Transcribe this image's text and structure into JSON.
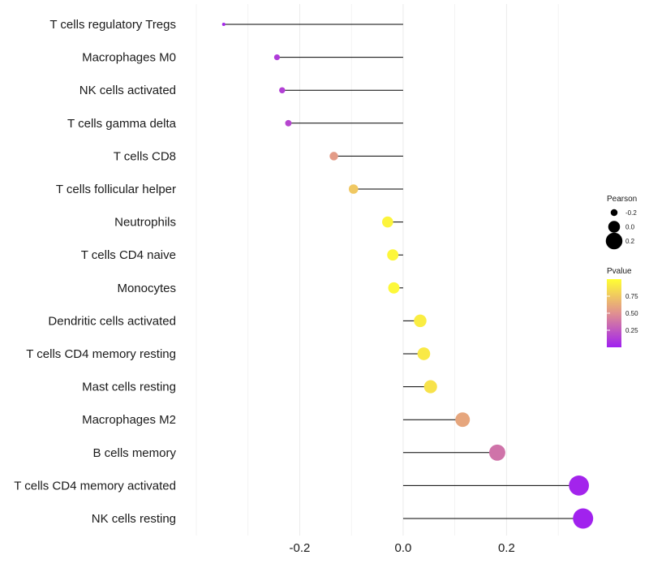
{
  "chart_data": {
    "type": "lollipop",
    "title": "",
    "xlabel": "",
    "ylabel": "",
    "xlim": [
      -0.4,
      0.35
    ],
    "xticks": [
      -0.2,
      0.0,
      0.2
    ],
    "xtick_labels": [
      "-0.2",
      "0.0",
      "0.2"
    ],
    "grid": true,
    "baseline": 0,
    "categories": [
      "T cells regulatory  Tregs",
      "Macrophages M0",
      "NK cells activated",
      "T cells gamma delta",
      "T cells CD8",
      "T cells follicular helper",
      "Neutrophils",
      "T cells CD4 naive",
      "Monocytes",
      "Dendritic cells activated",
      "T cells CD4 memory resting",
      "Mast cells resting",
      "Macrophages M2",
      "B cells memory",
      "T cells CD4 memory activated",
      "NK cells resting"
    ],
    "values": [
      -0.347,
      -0.244,
      -0.234,
      -0.222,
      -0.134,
      -0.096,
      -0.03,
      -0.02,
      -0.018,
      0.033,
      0.04,
      0.053,
      0.115,
      0.182,
      0.34,
      0.348
    ],
    "pvalues": [
      0.03,
      0.12,
      0.14,
      0.17,
      0.55,
      0.75,
      0.95,
      0.96,
      0.97,
      0.92,
      0.9,
      0.87,
      0.6,
      0.37,
      0.02,
      0.01
    ],
    "legend": {
      "size_title": "Pearson",
      "size_labels": [
        "-0.2",
        "0.0",
        "0.2"
      ],
      "size_values": [
        -0.2,
        0.0,
        0.2
      ],
      "color_title": "Pvalue",
      "color_labels": [
        "0.75",
        "0.50",
        "0.25"
      ],
      "color_values": [
        0.75,
        0.5,
        0.25
      ],
      "color_range": [
        0.0,
        1.0
      ],
      "color_low": "#a020f0",
      "color_mid": "#e09090",
      "color_high": "#ffff33",
      "position": "right"
    },
    "colors": {
      "stem": "#000000",
      "grid": "#ebebeb",
      "text": "#1a1a1a"
    }
  }
}
